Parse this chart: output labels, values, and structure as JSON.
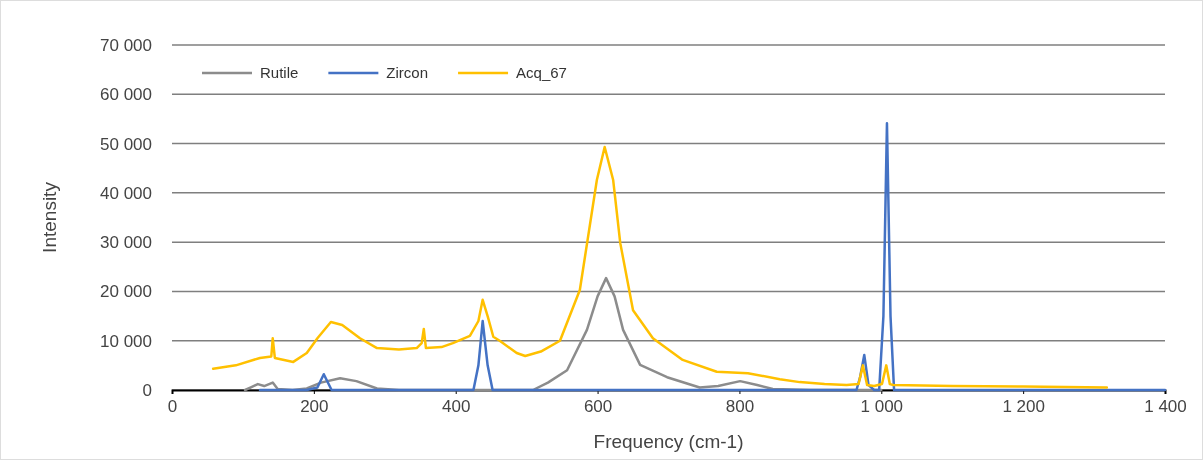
{
  "chart_data": {
    "type": "line",
    "xlabel": "Frequency (cm-1)",
    "ylabel": "Intensity",
    "xlim": [
      0,
      1400
    ],
    "ylim": [
      0,
      70000
    ],
    "xticks": [
      0,
      200,
      400,
      600,
      800,
      {
        "value": 1000,
        "label": "1 000"
      },
      {
        "value": 1200,
        "label": "1 200"
      },
      {
        "value": 1400,
        "label": "1 400"
      }
    ],
    "yticks": [
      0,
      {
        "value": 10000,
        "label": "10 000"
      },
      {
        "value": 20000,
        "label": "20 000"
      },
      {
        "value": 30000,
        "label": "30 000"
      },
      {
        "value": 40000,
        "label": "40 000"
      },
      {
        "value": 50000,
        "label": "50 000"
      },
      {
        "value": 60000,
        "label": "60 000"
      },
      {
        "value": 70000,
        "label": "70 000"
      }
    ],
    "grid": "y",
    "legend": "top left",
    "marker": "none",
    "line_style": "solid",
    "series": [
      {
        "name": "Rutile",
        "color": "#8c8c8c",
        "x": [
          103,
          112,
          121,
          130,
          142,
          149,
          170,
          190,
          210,
          237,
          260,
          289,
          320,
          400,
          480,
          509,
          530,
          557,
          585,
          600,
          612,
          624,
          636,
          660,
          698,
          744,
          770,
          801,
          825,
          847,
          900,
          1000
        ],
        "values": [
          0,
          600,
          1200,
          800,
          1500,
          200,
          0,
          300,
          1500,
          2400,
          1800,
          300,
          0,
          0,
          0,
          0,
          1500,
          4000,
          12200,
          19000,
          22700,
          19000,
          12200,
          5100,
          2600,
          500,
          800,
          1800,
          1000,
          200,
          0,
          0
        ]
      },
      {
        "name": "Zircon",
        "color": "#4472c4",
        "x": [
          124,
          190,
          205,
          214,
          225,
          300,
          400,
          425,
          432,
          438,
          445,
          452,
          500,
          700,
          900,
          965,
          970,
          976,
          982,
          990,
          997,
          1003,
          1008,
          1013,
          1018,
          1100,
          1200,
          1300,
          1400
        ],
        "values": [
          0,
          0,
          500,
          3200,
          0,
          0,
          0,
          0,
          5000,
          14000,
          5000,
          0,
          0,
          0,
          0,
          0,
          2500,
          7100,
          1000,
          0,
          0,
          15000,
          54100,
          15000,
          0,
          0,
          0,
          0,
          0
        ]
      },
      {
        "name": "Acq_67",
        "color": "#ffc000",
        "x": [
          58,
          90,
          124,
          140,
          142,
          145,
          171,
          190,
          200,
          205,
          224,
          240,
          265,
          289,
          320,
          345,
          352,
          355,
          358,
          380,
          396,
          420,
          432,
          438,
          445,
          453,
          462,
          486,
          498,
          520,
          547,
          575,
          599,
          610,
          622,
          632,
          650,
          678,
          720,
          768,
          812,
          857,
          885,
          920,
          951,
          968,
          974,
          980,
          990,
          1001,
          1007,
          1012,
          1017,
          1100,
          1200,
          1318
        ],
        "values": [
          4300,
          5000,
          6500,
          6800,
          10500,
          6500,
          5700,
          7500,
          9500,
          10500,
          13800,
          13200,
          10500,
          8500,
          8200,
          8500,
          9500,
          12400,
          8500,
          8700,
          9500,
          11000,
          14000,
          18300,
          15000,
          10800,
          10000,
          7500,
          6900,
          7800,
          10000,
          20300,
          42600,
          49300,
          42600,
          29800,
          16200,
          10500,
          6100,
          3700,
          3400,
          2200,
          1600,
          1200,
          1000,
          1200,
          5000,
          1000,
          800,
          1200,
          5000,
          1200,
          1000,
          800,
          700,
          500
        ]
      }
    ]
  }
}
